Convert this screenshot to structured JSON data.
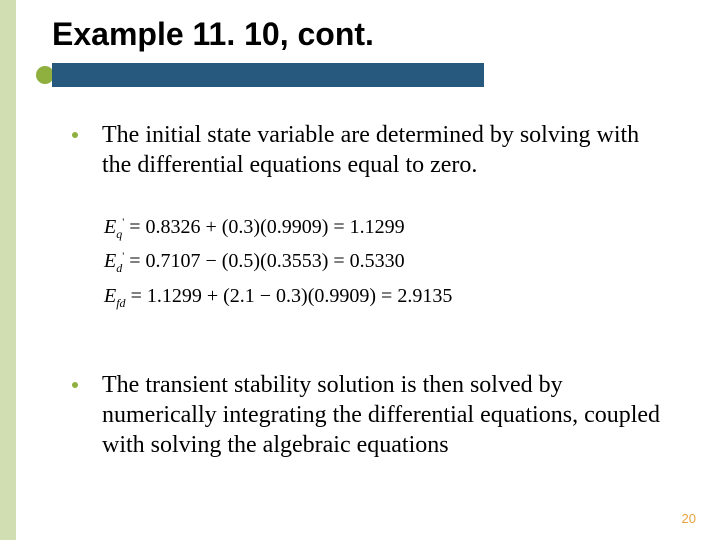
{
  "colors": {
    "sidebar": "#d0deb1",
    "accent_bar": "#26597d",
    "accent_circle": "#8fb03e",
    "bullet_dot": "#8fb03e",
    "page_num": "#e8a33d",
    "text": "#000000",
    "background": "#ffffff"
  },
  "title": "Example 11. 10, cont.",
  "bullet1": "The initial state variable are determined by solving with the differential equations equal to zero.",
  "equations": {
    "eq1": {
      "lhs_sym": "E",
      "lhs_sub": "q",
      "lhs_sup": "'",
      "rhs": " = 0.8326 + (0.3)(0.9909) = 1.1299"
    },
    "eq2": {
      "lhs_sym": "E",
      "lhs_sub": "d",
      "lhs_sup": "'",
      "rhs": " = 0.7107 − (0.5)(0.3553) = 0.5330"
    },
    "eq3": {
      "lhs_sym": "E",
      "lhs_sub": "fd",
      "lhs_sup": "",
      "rhs": " = 1.1299 + (2.1 − 0.3)(0.9909) = 2.9135"
    }
  },
  "bullet2": "The transient stability solution is then solved by numerically integrating the differential equations, coupled with solving the algebraic equations",
  "page_number": "20"
}
